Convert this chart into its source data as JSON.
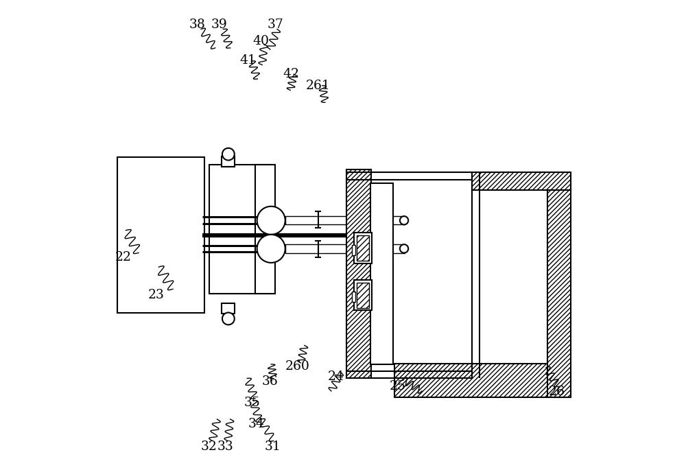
{
  "bg_color": "#ffffff",
  "line_color": "#000000",
  "fig_width": 10.0,
  "fig_height": 6.85
}
